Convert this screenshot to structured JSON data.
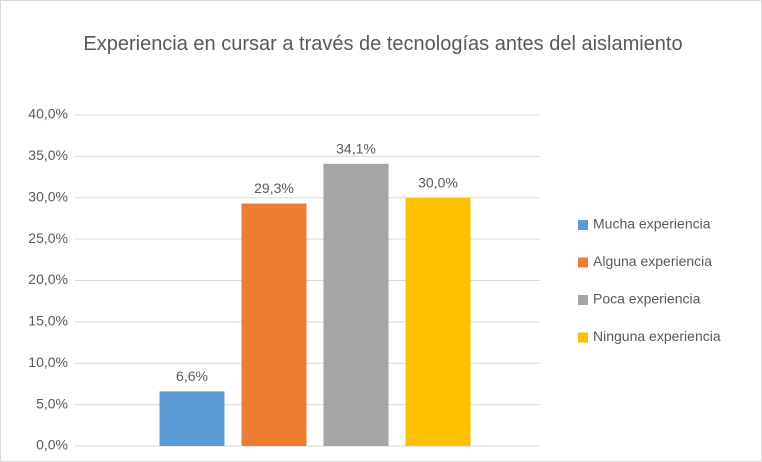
{
  "chart_data": {
    "type": "bar",
    "title": "Experiencia en cursar a través de tecnologías antes del aislamiento",
    "categories": [
      null
    ],
    "series": [
      {
        "name": "Mucha experiencia",
        "color": "#5b9bd5",
        "values": [
          6.6
        ],
        "value_labels": [
          "6,6%"
        ]
      },
      {
        "name": "Alguna experiencia",
        "color": "#ed7d31",
        "values": [
          29.3
        ],
        "value_labels": [
          "29,3%"
        ]
      },
      {
        "name": "Poca experiencia",
        "color": "#a5a5a5",
        "values": [
          34.1
        ],
        "value_labels": [
          "34,1%"
        ]
      },
      {
        "name": "Ninguna experiencia",
        "color": "#ffc000",
        "values": [
          30.0
        ],
        "value_labels": [
          "30,0%"
        ]
      }
    ],
    "ylim": [
      0,
      40
    ],
    "yticks": [
      {
        "value": 0,
        "label": "0,0%"
      },
      {
        "value": 5,
        "label": "5,0%"
      },
      {
        "value": 10,
        "label": "10,0%"
      },
      {
        "value": 15,
        "label": "15,0%"
      },
      {
        "value": 20,
        "label": "20,0%"
      },
      {
        "value": 25,
        "label": "25,0%"
      },
      {
        "value": 30,
        "label": "30,0%"
      },
      {
        "value": 35,
        "label": "35,0%"
      },
      {
        "value": 40,
        "label": "40,0%"
      }
    ],
    "grid": true,
    "legend": "right"
  }
}
